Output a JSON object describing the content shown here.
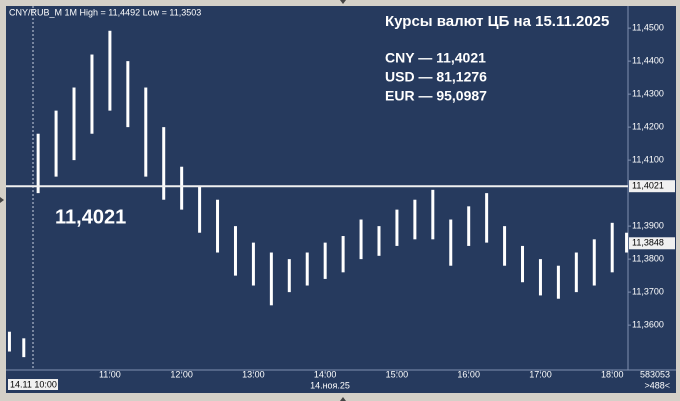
{
  "chart_data": {
    "type": "range",
    "header": "CNY/RUB_M 1M High = 11,4492 Low = 11,3503",
    "title": "Курсы валют ЦБ на 15.11.2025",
    "rates": [
      "CNY — 11,4021",
      "USD — 81,1276",
      "EUR — 95,0987"
    ],
    "color": "#ffffff",
    "x": [
      9.6,
      9.8,
      10.0,
      10.25,
      10.5,
      10.75,
      11.0,
      11.25,
      11.5,
      11.75,
      12.0,
      12.25,
      12.5,
      12.75,
      13.0,
      13.25,
      13.5,
      13.75,
      14.0,
      14.25,
      14.5,
      14.75,
      15.0,
      15.25,
      15.5,
      15.75,
      16.0,
      16.25,
      16.5,
      16.75,
      17.0,
      17.25,
      17.5,
      17.75,
      18.0,
      18.2
    ],
    "high": [
      11.358,
      11.356,
      11.418,
      11.425,
      11.432,
      11.442,
      11.4492,
      11.44,
      11.432,
      11.42,
      11.408,
      11.402,
      11.398,
      11.39,
      11.385,
      11.382,
      11.38,
      11.382,
      11.385,
      11.387,
      11.392,
      11.39,
      11.395,
      11.398,
      11.401,
      11.392,
      11.396,
      11.4,
      11.39,
      11.384,
      11.38,
      11.378,
      11.382,
      11.386,
      11.391,
      11.388
    ],
    "low": [
      11.352,
      11.3503,
      11.4,
      11.405,
      11.41,
      11.418,
      11.425,
      11.42,
      11.405,
      11.398,
      11.395,
      11.388,
      11.382,
      11.375,
      11.372,
      11.366,
      11.37,
      11.372,
      11.374,
      11.376,
      11.38,
      11.381,
      11.384,
      11.386,
      11.386,
      11.378,
      11.384,
      11.385,
      11.378,
      11.373,
      11.369,
      11.368,
      11.37,
      11.372,
      11.376,
      11.382
    ],
    "reference_line": {
      "value": 11.4021,
      "label": "11,4021"
    },
    "last_price": {
      "value": 11.3848,
      "label": "11,3848"
    },
    "xlim": [
      9.58,
      18.22
    ],
    "ylim": [
      11.3464,
      11.4561
    ],
    "xticks": [
      {
        "value": 11,
        "label": "11:00"
      },
      {
        "value": 12,
        "label": "12:00"
      },
      {
        "value": 13,
        "label": "13:00"
      },
      {
        "value": 14,
        "label": "14:00"
      },
      {
        "value": 15,
        "label": "15:00"
      },
      {
        "value": 16,
        "label": "16:00"
      },
      {
        "value": 17,
        "label": "17:00"
      },
      {
        "value": 18,
        "label": "18:00"
      }
    ],
    "yticks": [
      {
        "value": 11.36,
        "label": "11,3600"
      },
      {
        "value": 11.37,
        "label": "11,3700"
      },
      {
        "value": 11.38,
        "label": "11,3800"
      },
      {
        "value": 11.39,
        "label": "11,3900"
      },
      {
        "value": 11.41,
        "label": "11,4100"
      },
      {
        "value": 11.42,
        "label": "11,4200"
      },
      {
        "value": 11.43,
        "label": "11,4300"
      },
      {
        "value": 11.44,
        "label": "11,4400"
      },
      {
        "value": 11.45,
        "label": "11,4500"
      }
    ],
    "cursor_label": "14.11 10:00",
    "date_label": "14.ноя.25",
    "corner_texts": [
      "583053",
      ">488<"
    ]
  }
}
